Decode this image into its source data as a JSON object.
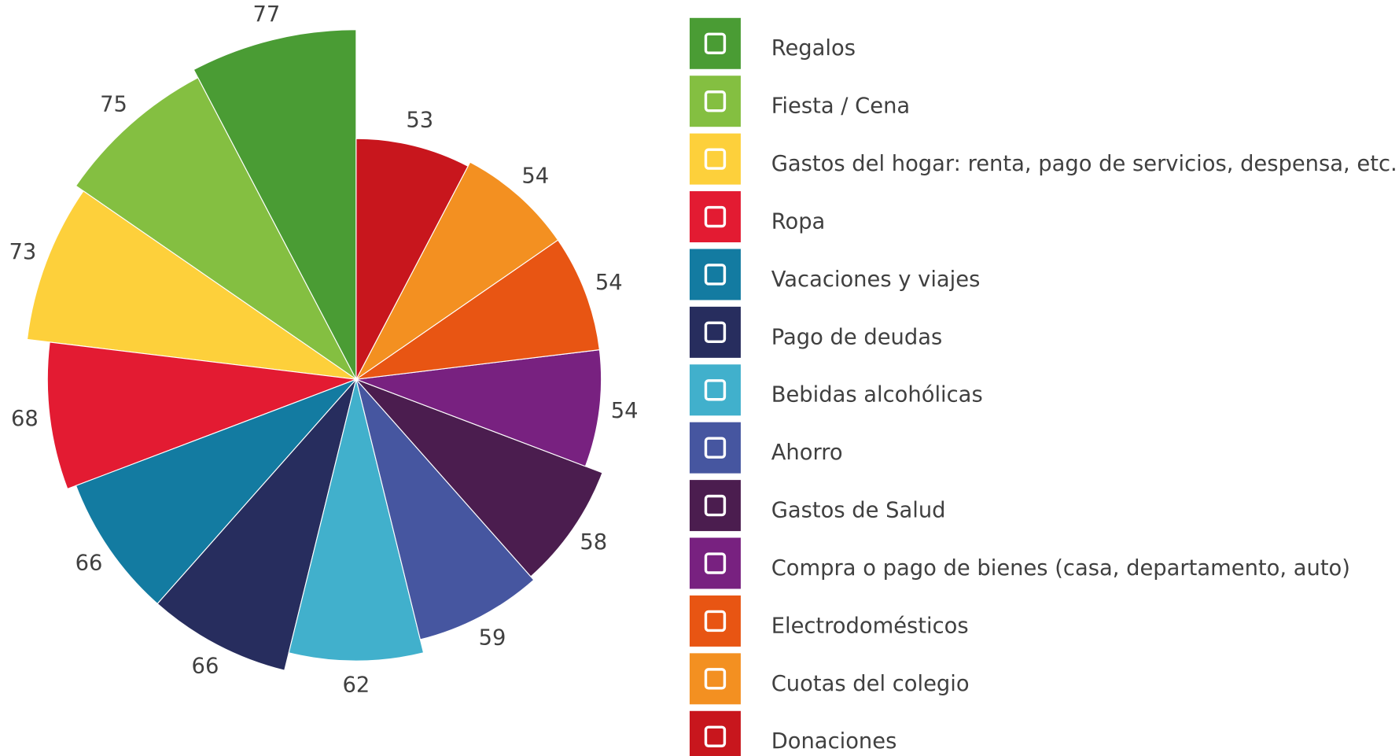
{
  "chart_data": {
    "type": "polar_area",
    "categories": [
      "Regalos",
      "Fiesta / Cena",
      "Gastos del hogar: renta, pago de servicios, despensa, etc.",
      "Ropa",
      "Vacaciones y viajes",
      "Pago de deudas",
      "Bebidas alcohólicas",
      "Ahorro",
      "Gastos de Salud",
      "Compra o pago de bienes (casa, departamento, auto)",
      "Electrodomésticos",
      "Cuotas del colegio",
      "Donaciones"
    ],
    "values": [
      77,
      75,
      73,
      68,
      66,
      66,
      62,
      59,
      58,
      54,
      54,
      54,
      53
    ],
    "colors": [
      "#4a9c34",
      "#84bf41",
      "#fdd03b",
      "#e31b32",
      "#137ba1",
      "#272d5e",
      "#41b0cc",
      "#4656a0",
      "#4b1d4f",
      "#782180",
      "#e85513",
      "#f39021",
      "#c8161d"
    ],
    "legend": "right"
  }
}
